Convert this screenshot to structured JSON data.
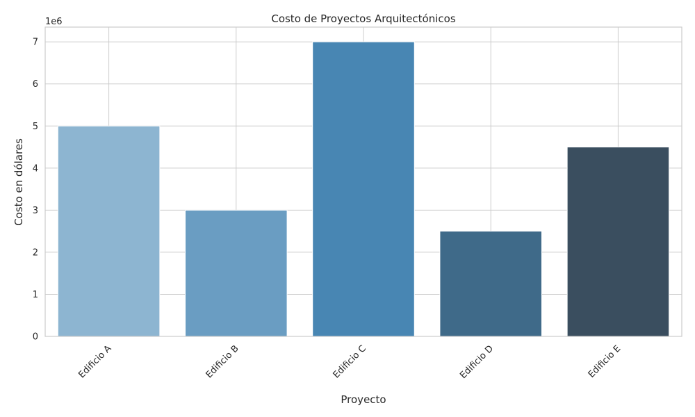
{
  "chart_data": {
    "type": "bar",
    "title": "Costo de Proyectos Arquitectónicos",
    "xlabel": "Proyecto",
    "ylabel": "Costo en dólares",
    "y_offset_label": "1e6",
    "categories": [
      "Edificio A",
      "Edificio B",
      "Edificio C",
      "Edificio D",
      "Edificio E"
    ],
    "values": [
      5000000,
      3000000,
      7000000,
      2500000,
      4500000
    ],
    "colors": [
      "#8db5d1",
      "#6a9dc2",
      "#4886b3",
      "#3f6a89",
      "#3a4e5f"
    ],
    "ylim": [
      0,
      7350000
    ],
    "yticks": [
      0,
      1000000,
      2000000,
      3000000,
      4000000,
      5000000,
      6000000,
      7000000
    ],
    "ytick_labels": [
      "0",
      "1",
      "2",
      "3",
      "4",
      "5",
      "6",
      "7"
    ],
    "grid": true,
    "xtick_rotation": 45
  }
}
